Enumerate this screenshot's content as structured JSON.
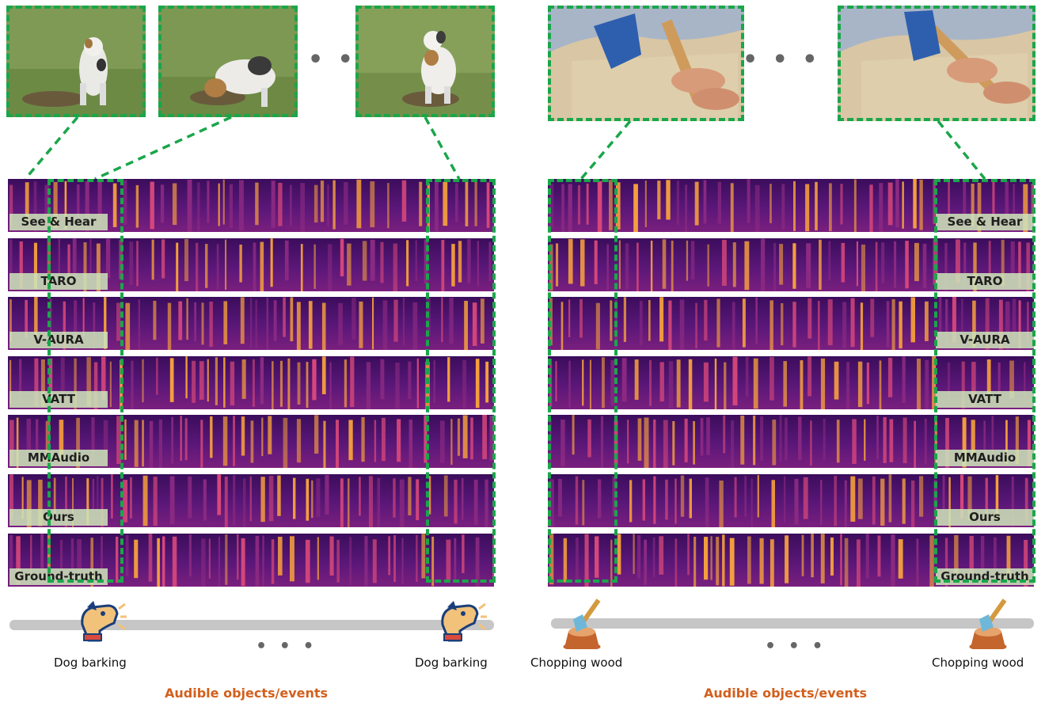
{
  "left": {
    "methods": [
      "See & Hear",
      "TARO",
      "V-AURA",
      "VATT",
      "MMAudio",
      "Ours",
      "Ground-truth"
    ],
    "ellipsis": "• • •",
    "events": [
      {
        "label": "Dog barking",
        "icon": "barking-dog-icon"
      },
      {
        "label": "Dog barking",
        "icon": "barking-dog-icon"
      }
    ],
    "event_ellipsis": "• • •",
    "caption": "Audible objects/events"
  },
  "right": {
    "methods": [
      "See & Hear",
      "TARO",
      "V-AURA",
      "VATT",
      "MMAudio",
      "Ours",
      "Ground-truth"
    ],
    "ellipsis": "• • •",
    "events": [
      {
        "label": "Chopping wood",
        "icon": "axe-in-stump-icon"
      },
      {
        "label": "Chopping wood",
        "icon": "axe-in-stump-icon"
      }
    ],
    "event_ellipsis": "• • •",
    "caption": "Audible objects/events"
  },
  "colors": {
    "highlight": "#1aa64a",
    "caption": "#d35f1d",
    "timeline": "#c6c6c6"
  }
}
